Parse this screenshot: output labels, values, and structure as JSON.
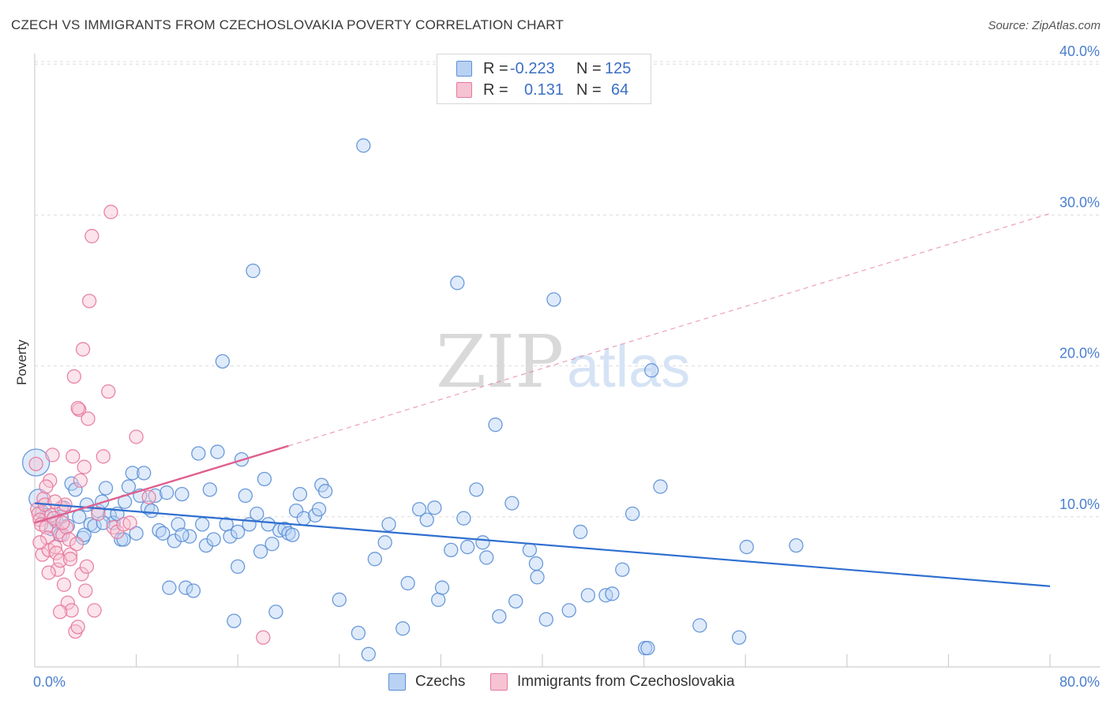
{
  "header": {
    "title": "CZECH VS IMMIGRANTS FROM CZECHOSLOVAKIA POVERTY CORRELATION CHART",
    "source": "Source: ZipAtlas.com"
  },
  "watermark": {
    "zip": "ZIP",
    "atlas": "atlas"
  },
  "stats": {
    "rows": [
      {
        "r_label": "R =",
        "r_value": "-0.223",
        "n_label": "N =",
        "n_value": "125"
      },
      {
        "r_label": "R =",
        "r_value": "0.131",
        "n_label": "N =",
        "n_value": "64"
      }
    ]
  },
  "legend": {
    "items": [
      {
        "label": "Czechs"
      },
      {
        "label": "Immigrants from Czechoslovakia"
      }
    ]
  },
  "chart_data": {
    "type": "scatter",
    "title": "CZECH VS IMMIGRANTS FROM CZECHOSLOVAKIA POVERTY CORRELATION CHART",
    "ylabel": "Poverty",
    "xlabel": "",
    "xlim": [
      0,
      80
    ],
    "ylim": [
      0,
      40
    ],
    "y_ticks": [
      10,
      20,
      30,
      40
    ],
    "y_tick_labels": [
      "10.0%",
      "20.0%",
      "30.0%",
      "40.0%"
    ],
    "x_tick_labels": [
      "0.0%",
      "80.0%"
    ],
    "grid": true,
    "colors": {
      "blue": "#5b8fd6",
      "blue_fill": "#b9d2f3",
      "blue_line": "#2f6fd0",
      "pink": "#e7789c",
      "pink_fill": "#f6c3d3",
      "pink_line": "#e0608f"
    },
    "series": [
      {
        "name": "Czechs",
        "color": "#5b8fd6",
        "points": [
          [
            0.1,
            13.6
          ],
          [
            0.3,
            11.2
          ],
          [
            0.6,
            10.3
          ],
          [
            0.9,
            10.1
          ],
          [
            1.3,
            9.2
          ],
          [
            1.7,
            9.7
          ],
          [
            2.0,
            8.8
          ],
          [
            2.3,
            10.6
          ],
          [
            2.6,
            9.4
          ],
          [
            2.9,
            12.2
          ],
          [
            3.2,
            11.8
          ],
          [
            3.5,
            10.0
          ],
          [
            3.8,
            8.6
          ],
          [
            4.1,
            10.8
          ],
          [
            4.4,
            9.5
          ],
          [
            4.7,
            9.4
          ],
          [
            5.0,
            10.4
          ],
          [
            5.3,
            11.0
          ],
          [
            5.6,
            11.9
          ],
          [
            5.9,
            10.1
          ],
          [
            6.2,
            9.6
          ],
          [
            6.5,
            10.2
          ],
          [
            6.8,
            8.5
          ],
          [
            7.1,
            11.0
          ],
          [
            7.4,
            12.0
          ],
          [
            7.7,
            12.9
          ],
          [
            8.0,
            8.9
          ],
          [
            8.3,
            11.4
          ],
          [
            8.6,
            12.9
          ],
          [
            8.9,
            10.6
          ],
          [
            9.2,
            10.4
          ],
          [
            9.5,
            11.4
          ],
          [
            9.8,
            9.1
          ],
          [
            10.1,
            8.9
          ],
          [
            10.4,
            11.6
          ],
          [
            10.6,
            5.3
          ],
          [
            11.0,
            8.4
          ],
          [
            11.3,
            9.5
          ],
          [
            11.6,
            11.5
          ],
          [
            11.9,
            5.3
          ],
          [
            12.2,
            8.7
          ],
          [
            12.5,
            5.1
          ],
          [
            12.9,
            14.2
          ],
          [
            13.2,
            9.5
          ],
          [
            13.5,
            8.1
          ],
          [
            13.8,
            11.8
          ],
          [
            14.1,
            8.5
          ],
          [
            14.4,
            14.3
          ],
          [
            14.8,
            20.3
          ],
          [
            15.1,
            9.5
          ],
          [
            15.4,
            8.7
          ],
          [
            15.7,
            3.1
          ],
          [
            16.0,
            6.7
          ],
          [
            16.3,
            13.8
          ],
          [
            16.6,
            11.4
          ],
          [
            16.9,
            9.5
          ],
          [
            17.2,
            26.3
          ],
          [
            17.5,
            10.2
          ],
          [
            17.8,
            7.7
          ],
          [
            18.1,
            12.5
          ],
          [
            18.4,
            9.5
          ],
          [
            18.7,
            8.2
          ],
          [
            19.0,
            3.7
          ],
          [
            19.3,
            9.1
          ],
          [
            19.7,
            9.2
          ],
          [
            20.0,
            8.9
          ],
          [
            20.3,
            8.8
          ],
          [
            20.6,
            10.4
          ],
          [
            20.9,
            11.5
          ],
          [
            21.2,
            9.9
          ],
          [
            22.1,
            10.1
          ],
          [
            22.4,
            10.5
          ],
          [
            22.6,
            12.1
          ],
          [
            22.9,
            11.7
          ],
          [
            24.0,
            4.5
          ],
          [
            25.5,
            2.3
          ],
          [
            25.9,
            34.6
          ],
          [
            26.3,
            0.9
          ],
          [
            26.8,
            7.2
          ],
          [
            27.6,
            8.3
          ],
          [
            27.9,
            9.5
          ],
          [
            29.0,
            2.6
          ],
          [
            29.4,
            5.6
          ],
          [
            30.3,
            10.5
          ],
          [
            30.9,
            9.8
          ],
          [
            31.5,
            10.6
          ],
          [
            31.8,
            4.5
          ],
          [
            32.1,
            5.3
          ],
          [
            32.8,
            7.8
          ],
          [
            33.3,
            25.5
          ],
          [
            33.8,
            9.9
          ],
          [
            34.1,
            8.0
          ],
          [
            34.8,
            11.8
          ],
          [
            35.3,
            8.3
          ],
          [
            35.6,
            7.3
          ],
          [
            36.3,
            16.1
          ],
          [
            36.6,
            3.4
          ],
          [
            37.6,
            10.9
          ],
          [
            37.9,
            4.4
          ],
          [
            39.0,
            7.8
          ],
          [
            39.5,
            6.9
          ],
          [
            39.6,
            6.0
          ],
          [
            40.3,
            3.2
          ],
          [
            40.9,
            24.4
          ],
          [
            42.1,
            3.8
          ],
          [
            43.0,
            9.0
          ],
          [
            43.6,
            4.8
          ],
          [
            45.0,
            4.8
          ],
          [
            45.5,
            4.9
          ],
          [
            46.3,
            6.5
          ],
          [
            47.1,
            10.2
          ],
          [
            48.1,
            1.3
          ],
          [
            48.6,
            19.7
          ],
          [
            49.3,
            12.0
          ],
          [
            52.4,
            2.8
          ],
          [
            55.5,
            2.0
          ],
          [
            56.1,
            8.0
          ],
          [
            60.0,
            8.1
          ],
          [
            48.3,
            1.3
          ],
          [
            11.6,
            8.8
          ],
          [
            7.0,
            8.5
          ],
          [
            5.4,
            9.6
          ],
          [
            3.9,
            8.8
          ],
          [
            2.1,
            10.0
          ],
          [
            16.0,
            9.0
          ]
        ]
      },
      {
        "name": "Immigrants from Czechoslovakia",
        "color": "#e7789c",
        "points": [
          [
            0.1,
            13.5
          ],
          [
            0.2,
            10.5
          ],
          [
            0.3,
            10.2
          ],
          [
            0.4,
            9.8
          ],
          [
            0.5,
            9.5
          ],
          [
            0.6,
            7.5
          ],
          [
            0.7,
            11.2
          ],
          [
            0.8,
            10.8
          ],
          [
            0.9,
            9.3
          ],
          [
            1.0,
            8.6
          ],
          [
            1.1,
            7.8
          ],
          [
            1.2,
            12.4
          ],
          [
            1.3,
            10.1
          ],
          [
            1.4,
            14.1
          ],
          [
            1.5,
            9.9
          ],
          [
            1.6,
            8.0
          ],
          [
            1.7,
            7.6
          ],
          [
            1.8,
            6.5
          ],
          [
            1.9,
            9.0
          ],
          [
            2.0,
            7.1
          ],
          [
            2.1,
            10.6
          ],
          [
            2.2,
            8.8
          ],
          [
            2.3,
            5.5
          ],
          [
            2.4,
            10.8
          ],
          [
            2.5,
            9.3
          ],
          [
            2.6,
            4.3
          ],
          [
            2.7,
            8.5
          ],
          [
            2.8,
            7.5
          ],
          [
            2.9,
            3.8
          ],
          [
            3.0,
            14.0
          ],
          [
            3.1,
            19.3
          ],
          [
            3.2,
            2.4
          ],
          [
            3.3,
            8.2
          ],
          [
            3.4,
            2.7
          ],
          [
            3.5,
            17.1
          ],
          [
            3.6,
            12.4
          ],
          [
            3.7,
            6.2
          ],
          [
            3.8,
            21.1
          ],
          [
            3.9,
            13.3
          ],
          [
            4.0,
            5.1
          ],
          [
            4.1,
            6.7
          ],
          [
            4.2,
            16.5
          ],
          [
            4.3,
            24.3
          ],
          [
            4.5,
            28.6
          ],
          [
            4.7,
            3.8
          ],
          [
            5.0,
            10.2
          ],
          [
            5.4,
            14.0
          ],
          [
            5.8,
            18.3
          ],
          [
            6.0,
            30.2
          ],
          [
            6.2,
            9.3
          ],
          [
            6.5,
            9.0
          ],
          [
            7.0,
            9.5
          ],
          [
            7.5,
            9.6
          ],
          [
            8.0,
            15.3
          ],
          [
            9.0,
            11.3
          ],
          [
            18.0,
            2.0
          ],
          [
            0.9,
            12.0
          ],
          [
            1.6,
            11.0
          ],
          [
            2.2,
            9.6
          ],
          [
            2.8,
            7.2
          ],
          [
            3.4,
            17.2
          ],
          [
            0.4,
            8.3
          ],
          [
            1.1,
            6.3
          ],
          [
            2.0,
            3.7
          ]
        ]
      }
    ],
    "trend_lines": [
      {
        "series": "Czechs",
        "x": [
          0,
          80
        ],
        "y": [
          10.9,
          5.4
        ]
      },
      {
        "series": "Immigrants from Czechoslovakia",
        "x": [
          0,
          20
        ],
        "y": [
          9.6,
          14.7
        ],
        "dashed_extension_to": [
          80,
          30.1
        ]
      }
    ]
  }
}
